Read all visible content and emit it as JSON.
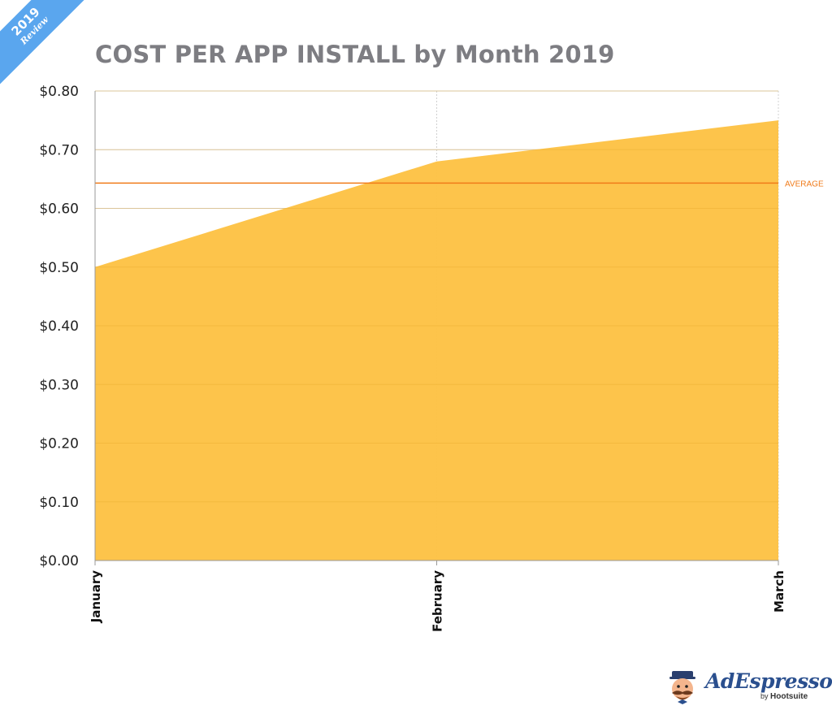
{
  "badge": {
    "year": "2019",
    "label": "Review"
  },
  "brand": {
    "name": "AdEspresso",
    "by": "by",
    "partner": "Hootsuite"
  },
  "chart_data": {
    "type": "area",
    "title": "COST PER APP INSTALL by Month 2019",
    "categories": [
      "January",
      "February",
      "March"
    ],
    "series": [
      {
        "values": [
          0.5,
          0.68,
          0.75
        ],
        "color": "#fdc141"
      }
    ],
    "average": {
      "label": "AVERAGE",
      "value": 0.643,
      "color": "#f07b1a"
    },
    "ylim": [
      0,
      0.8
    ],
    "yticks": [
      0,
      0.1,
      0.2,
      0.3,
      0.4,
      0.5,
      0.6,
      0.7,
      0.8
    ],
    "ytick_labels": [
      "$0.00",
      "$0.10",
      "$0.20",
      "$0.30",
      "$0.40",
      "$0.50",
      "$0.60",
      "$0.70",
      "$0.80"
    ],
    "xlabel": "",
    "ylabel": "",
    "grid": true,
    "legend": "none"
  }
}
